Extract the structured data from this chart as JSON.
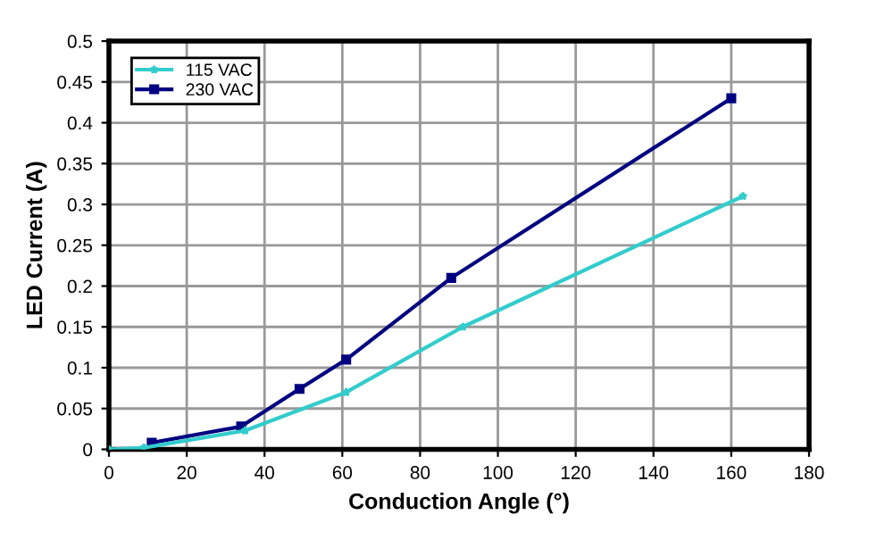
{
  "chart_data": {
    "type": "line",
    "xlabel": "Conduction Angle (°)",
    "ylabel": "LED Current (A)",
    "xlim": [
      0,
      180
    ],
    "xticks": [
      0,
      20,
      40,
      60,
      80,
      100,
      120,
      140,
      160,
      180
    ],
    "ylim": [
      0,
      0.5
    ],
    "yticks": [
      0,
      0.05,
      0.1,
      0.15,
      0.2,
      0.25,
      0.3,
      0.35,
      0.4,
      0.45,
      0.5
    ],
    "grid": true,
    "legend": "top left",
    "series": [
      {
        "name": "115 VAC",
        "color": "#33cccc",
        "marker": "star",
        "x": [
          0,
          9,
          35,
          61,
          91,
          163
        ],
        "values": [
          0,
          0.002,
          0.023,
          0.07,
          0.15,
          0.31
        ]
      },
      {
        "name": "230 VAC",
        "color": "#000080",
        "marker": "square",
        "x": [
          11,
          34,
          49,
          61,
          88,
          160
        ],
        "values": [
          0.008,
          0.028,
          0.074,
          0.11,
          0.21,
          0.43
        ]
      }
    ]
  }
}
